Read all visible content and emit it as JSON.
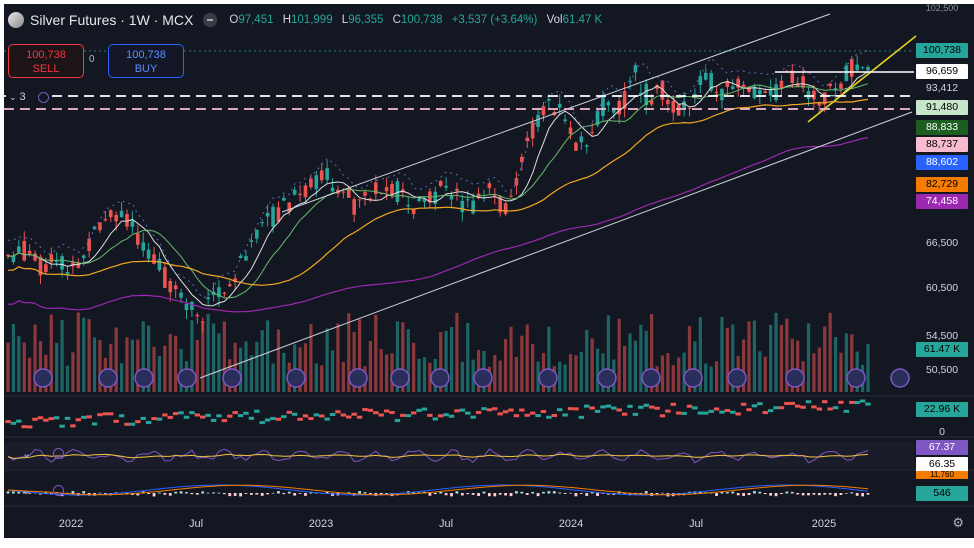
{
  "header": {
    "title": "Silver Futures · 1W · MCX",
    "ohlc": [
      {
        "key": "O",
        "value": "97,451"
      },
      {
        "key": "H",
        "value": "101,999"
      },
      {
        "key": "L",
        "value": "96,355"
      },
      {
        "key": "C",
        "value": "100,738"
      },
      {
        "key": "",
        "value": "+3,537 (+3.64%)"
      },
      {
        "key": "Vol",
        "value": "61.47 K"
      }
    ]
  },
  "trade": {
    "sell_price": "100,738",
    "sell_label": "SELL",
    "spread": "0",
    "buy_price": "100,738",
    "buy_label": "BUY"
  },
  "indicators": {
    "count": "3"
  },
  "axis": {
    "price_ticks": [
      "66,500",
      "60,500",
      "54,500",
      "50,500"
    ],
    "osc_ticks": [
      "0"
    ],
    "x_ticks": [
      "2022",
      "Jul",
      "2023",
      "Jul",
      "2024",
      "Jul",
      "2025"
    ],
    "partial_top": "102,500"
  },
  "price_labels": [
    {
      "text": "100,738",
      "bg": "#26a69a",
      "fg": "#000000"
    },
    {
      "text": "96,659",
      "bg": "#ffffff",
      "fg": "#000000"
    },
    {
      "text": "93,412",
      "bg": "#131722",
      "fg": "#d1d4dc"
    },
    {
      "text": "91,480",
      "bg": "#c8e6c9",
      "fg": "#000000"
    },
    {
      "text": "88,833",
      "bg": "#1b5e20",
      "fg": "#ffffff"
    },
    {
      "text": "88,737",
      "bg": "#f8bbd0",
      "fg": "#000000"
    },
    {
      "text": "88,602",
      "bg": "#2962ff",
      "fg": "#ffffff"
    },
    {
      "text": "82,729",
      "bg": "#f57c00",
      "fg": "#000000"
    },
    {
      "text": "74,458",
      "bg": "#9c27b0",
      "fg": "#ffffff"
    },
    {
      "text": "61.47 K",
      "bg": "#26a69a",
      "fg": "#000000"
    },
    {
      "text": "22.96 K",
      "bg": "#26a69a",
      "fg": "#000000"
    },
    {
      "text": "67.37",
      "bg": "#7e57c2",
      "fg": "#ffffff"
    },
    {
      "text": "66.35",
      "bg": "#ffffff",
      "fg": "#000000"
    },
    {
      "text": "546",
      "bg": "#26a69a",
      "fg": "#000000"
    },
    {
      "text": "11,760",
      "bg": "#f57c00",
      "fg": "#000000"
    }
  ],
  "colors": {
    "background": "#131722",
    "up": "#26a69a",
    "down": "#ef5350",
    "grid": "#1e222d"
  }
}
